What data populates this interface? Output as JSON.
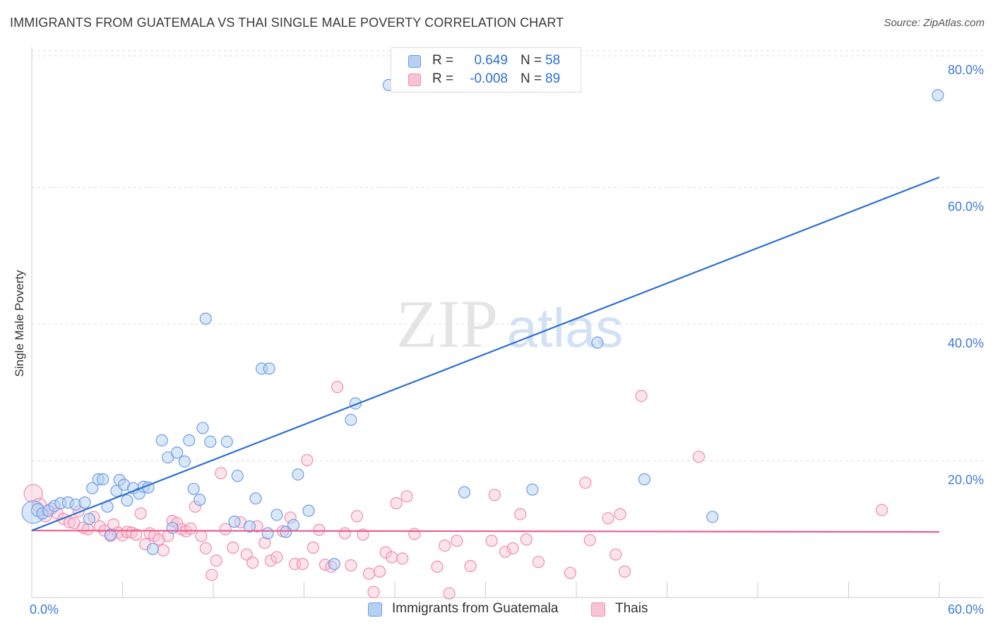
{
  "header": {
    "title": "IMMIGRANTS FROM GUATEMALA VS THAI SINGLE MALE POVERTY CORRELATION CHART",
    "source": "Source: ZipAtlas.com"
  },
  "watermark": {
    "zip": "ZIP",
    "atlas": "atlas"
  },
  "colors": {
    "blue": "#2e6fd1",
    "blue_fill": "#b6d0f4",
    "blue_stroke": "#6d9ee6",
    "pink": "#e8608a",
    "pink_fill": "#f8c3d4",
    "pink_stroke": "#ef8db0",
    "grid": "#dddddd",
    "tick_label": "#3d7ad6"
  },
  "legend": {
    "rows": [
      {
        "r_label": "R =",
        "r_value": "0.649",
        "n_label": "N =",
        "n_value": "58"
      },
      {
        "r_label": "R =",
        "r_value": "-0.008",
        "n_label": "N =",
        "n_value": "89"
      }
    ]
  },
  "bottom_legend": {
    "series1": "Immigrants from Guatemala",
    "series2": "Thais"
  },
  "chart_data": {
    "type": "scatter",
    "title": "IMMIGRANTS FROM GUATEMALA VS THAI SINGLE MALE POVERTY CORRELATION CHART",
    "xlabel": "",
    "ylabel": "Single Male Poverty",
    "xlim": [
      0,
      60
    ],
    "ylim": [
      0,
      80
    ],
    "x_tick_labels": [
      "0.0%",
      "60.0%"
    ],
    "y_ticks": [
      20,
      40,
      60,
      80
    ],
    "y_tick_labels": [
      "20.0%",
      "40.0%",
      "60.0%",
      "80.0%"
    ],
    "grid": true,
    "legend_position": "top-center",
    "series": [
      {
        "name": "Immigrants from Guatemala",
        "color": "#2e6fd1",
        "r": 0.649,
        "n": 58,
        "trend": {
          "x0": 0,
          "y0": 9.8,
          "x1": 60,
          "y1": 61.5
        },
        "points": [
          [
            0.1,
            12.5,
            16
          ],
          [
            0.4,
            12.8,
            9
          ],
          [
            0.7,
            12.3,
            8
          ],
          [
            1.1,
            12.7,
            8
          ],
          [
            1.5,
            13.4,
            8
          ],
          [
            1.9,
            13.8,
            8
          ],
          [
            2.4,
            13.9,
            8
          ],
          [
            2.9,
            13.6,
            8
          ],
          [
            3.5,
            13.9,
            8
          ],
          [
            3.8,
            11.5,
            8
          ],
          [
            4.0,
            16.0,
            8
          ],
          [
            4.4,
            17.3,
            8
          ],
          [
            4.7,
            17.3,
            8
          ],
          [
            5.0,
            13.3,
            8
          ],
          [
            5.2,
            9.2,
            8
          ],
          [
            5.6,
            15.6,
            8
          ],
          [
            5.8,
            17.2,
            8
          ],
          [
            6.1,
            16.5,
            8
          ],
          [
            6.3,
            14.2,
            8
          ],
          [
            6.7,
            16.0,
            8
          ],
          [
            7.1,
            15.2,
            8
          ],
          [
            7.4,
            16.2,
            8
          ],
          [
            7.7,
            16.1,
            8
          ],
          [
            8.0,
            7.1,
            8
          ],
          [
            8.6,
            23.0,
            8
          ],
          [
            9.0,
            20.5,
            8
          ],
          [
            9.3,
            10.2,
            8
          ],
          [
            9.6,
            21.2,
            8
          ],
          [
            10.1,
            19.9,
            8
          ],
          [
            10.4,
            23.0,
            8
          ],
          [
            10.7,
            15.9,
            8
          ],
          [
            11.1,
            14.3,
            8
          ],
          [
            11.3,
            24.8,
            8
          ],
          [
            11.5,
            40.8,
            8
          ],
          [
            11.8,
            22.8,
            8
          ],
          [
            12.9,
            22.8,
            8
          ],
          [
            13.4,
            11.1,
            8
          ],
          [
            13.6,
            17.8,
            8
          ],
          [
            14.4,
            10.4,
            8
          ],
          [
            14.8,
            14.5,
            8
          ],
          [
            15.2,
            33.5,
            8
          ],
          [
            15.6,
            9.4,
            8
          ],
          [
            15.7,
            33.5,
            8
          ],
          [
            16.2,
            12.1,
            8
          ],
          [
            16.8,
            9.6,
            8
          ],
          [
            17.3,
            10.6,
            8
          ],
          [
            17.6,
            18.0,
            8
          ],
          [
            18.3,
            12.7,
            8
          ],
          [
            20.0,
            4.9,
            8
          ],
          [
            21.1,
            26.0,
            8
          ],
          [
            21.4,
            28.4,
            8
          ],
          [
            23.6,
            75.0,
            8
          ],
          [
            28.6,
            15.4,
            8
          ],
          [
            33.1,
            15.8,
            8
          ],
          [
            37.4,
            37.3,
            8
          ],
          [
            40.5,
            17.3,
            8
          ],
          [
            45.0,
            11.8,
            8
          ],
          [
            59.9,
            73.5,
            8
          ]
        ]
      },
      {
        "name": "Thais",
        "color": "#e8608a",
        "r": -0.008,
        "n": 89,
        "trend": {
          "x0": 0,
          "y0": 9.8,
          "x1": 60,
          "y1": 9.6
        },
        "points": [
          [
            0.1,
            15.2,
            13
          ],
          [
            0.5,
            13.5,
            10
          ],
          [
            0.9,
            12.0,
            9
          ],
          [
            1.3,
            13.0,
            8
          ],
          [
            1.7,
            12.3,
            8
          ],
          [
            2.1,
            11.5,
            8
          ],
          [
            2.5,
            11.0,
            8
          ],
          [
            2.8,
            10.9,
            8
          ],
          [
            3.1,
            12.6,
            8
          ],
          [
            3.4,
            10.2,
            8
          ],
          [
            3.7,
            10.0,
            8
          ],
          [
            4.1,
            11.8,
            8
          ],
          [
            4.5,
            10.4,
            8
          ],
          [
            4.8,
            9.8,
            8
          ],
          [
            5.2,
            9.0,
            8
          ],
          [
            5.4,
            10.7,
            8
          ],
          [
            5.7,
            9.5,
            8
          ],
          [
            6.0,
            9.1,
            8
          ],
          [
            6.3,
            9.6,
            8
          ],
          [
            6.6,
            9.5,
            8
          ],
          [
            6.9,
            9.2,
            8
          ],
          [
            7.2,
            12.3,
            8
          ],
          [
            7.5,
            7.8,
            8
          ],
          [
            7.8,
            9.4,
            8
          ],
          [
            8.1,
            9.0,
            8
          ],
          [
            8.4,
            8.5,
            8
          ],
          [
            8.7,
            6.9,
            8
          ],
          [
            9.0,
            9.0,
            8
          ],
          [
            9.3,
            11.2,
            8
          ],
          [
            9.6,
            10.9,
            8
          ],
          [
            9.9,
            10.0,
            8
          ],
          [
            10.2,
            9.7,
            8
          ],
          [
            10.5,
            10.1,
            8
          ],
          [
            10.8,
            13.3,
            8
          ],
          [
            11.2,
            9.0,
            8
          ],
          [
            11.5,
            7.2,
            8
          ],
          [
            11.9,
            3.3,
            8
          ],
          [
            12.2,
            5.4,
            8
          ],
          [
            12.5,
            18.2,
            8
          ],
          [
            12.8,
            10.0,
            8
          ],
          [
            13.3,
            7.3,
            8
          ],
          [
            13.8,
            11.0,
            8
          ],
          [
            14.2,
            6.3,
            8
          ],
          [
            14.6,
            5.1,
            8
          ],
          [
            14.9,
            10.4,
            8
          ],
          [
            15.4,
            8.0,
            8
          ],
          [
            15.8,
            5.4,
            8
          ],
          [
            16.2,
            5.9,
            8
          ],
          [
            16.6,
            9.7,
            8
          ],
          [
            17.1,
            11.7,
            8
          ],
          [
            17.4,
            4.9,
            8
          ],
          [
            17.9,
            4.9,
            8
          ],
          [
            18.2,
            20.1,
            8
          ],
          [
            18.6,
            7.3,
            8
          ],
          [
            19.0,
            9.9,
            8
          ],
          [
            19.4,
            4.8,
            8
          ],
          [
            19.8,
            4.5,
            8
          ],
          [
            20.2,
            30.8,
            8
          ],
          [
            20.7,
            9.4,
            8
          ],
          [
            21.1,
            4.7,
            8
          ],
          [
            21.5,
            11.9,
            8
          ],
          [
            21.9,
            9.2,
            8
          ],
          [
            22.3,
            3.5,
            8
          ],
          [
            22.6,
            0.8,
            8
          ],
          [
            23.0,
            3.8,
            8
          ],
          [
            23.4,
            6.6,
            8
          ],
          [
            23.8,
            5.9,
            8
          ],
          [
            24.1,
            13.8,
            8
          ],
          [
            24.5,
            5.7,
            8
          ],
          [
            24.8,
            14.8,
            8
          ],
          [
            25.3,
            9.3,
            8
          ],
          [
            26.8,
            4.5,
            8
          ],
          [
            27.3,
            7.6,
            8
          ],
          [
            27.6,
            0.6,
            8
          ],
          [
            28.1,
            8.3,
            8
          ],
          [
            29.0,
            4.6,
            8
          ],
          [
            30.4,
            8.3,
            8
          ],
          [
            30.6,
            15.0,
            8
          ],
          [
            31.3,
            6.7,
            8
          ],
          [
            31.8,
            7.2,
            8
          ],
          [
            32.3,
            12.2,
            8
          ],
          [
            32.7,
            8.5,
            8
          ],
          [
            33.5,
            5.2,
            8
          ],
          [
            35.6,
            3.6,
            8
          ],
          [
            36.6,
            16.8,
            8
          ],
          [
            36.9,
            8.4,
            8
          ],
          [
            38.1,
            11.6,
            8
          ],
          [
            38.6,
            6.3,
            8
          ],
          [
            39.2,
            3.8,
            8
          ]
        ],
        "extra_points": [
          [
            38.9,
            12.2,
            8
          ],
          [
            40.3,
            29.5,
            8
          ],
          [
            44.1,
            20.6,
            8
          ],
          [
            56.2,
            12.8,
            8
          ]
        ]
      }
    ]
  }
}
